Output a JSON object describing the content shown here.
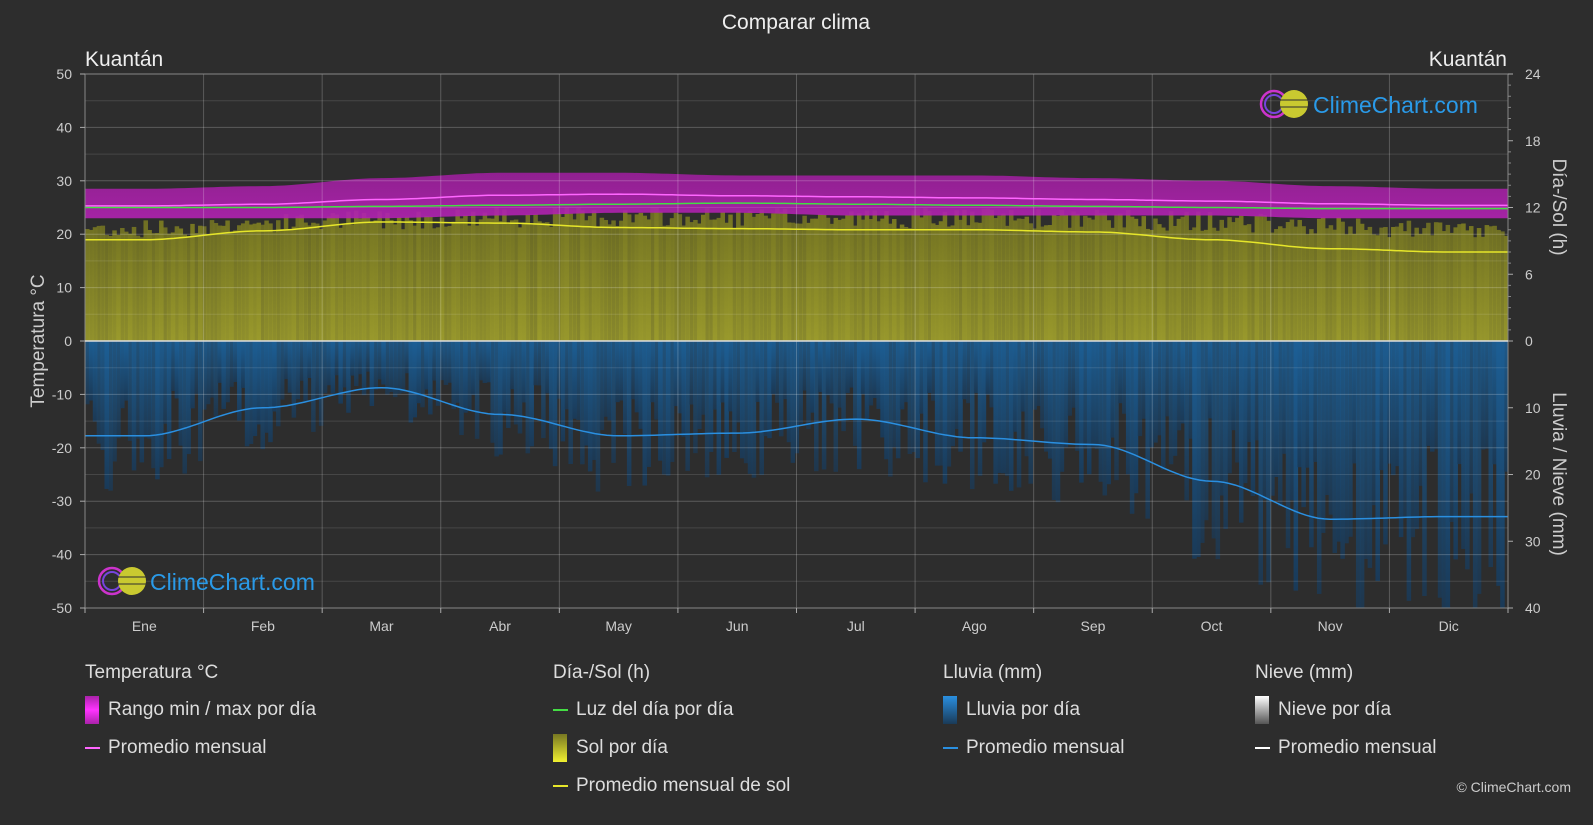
{
  "chart_data": {
    "type": "area",
    "title": "Comparar clima",
    "location_left": "Kuantán",
    "location_right": "Kuantán",
    "months": [
      "Ene",
      "Feb",
      "Mar",
      "Abr",
      "May",
      "Jun",
      "Jul",
      "Ago",
      "Sep",
      "Oct",
      "Nov",
      "Dic"
    ],
    "left_axis": {
      "label": "Temperatura °C",
      "min": -50,
      "max": 50,
      "ticks": [
        50,
        40,
        30,
        20,
        10,
        0,
        -10,
        -20,
        -30,
        -40,
        -50
      ]
    },
    "right_axis_top": {
      "label": "Día-/Sol (h)",
      "min": 0,
      "max": 24,
      "ticks": [
        24,
        18,
        12,
        6,
        0
      ]
    },
    "right_axis_bottom": {
      "label": "Lluvia / Nieve (mm)",
      "min": 0,
      "max": 40,
      "ticks": [
        0,
        10,
        20,
        30,
        40
      ]
    },
    "series": [
      {
        "name": "Rango min / max por día",
        "kind": "band",
        "color": "#d020d0",
        "min": [
          23,
          23,
          23,
          23.5,
          24,
          24,
          23.5,
          23.5,
          23.5,
          23.5,
          23,
          23
        ],
        "max": [
          28.5,
          29,
          30.5,
          31.5,
          31.5,
          31,
          31,
          31,
          30.5,
          30,
          29,
          28.5
        ]
      },
      {
        "name": "Promedio mensual",
        "axis": "temperature",
        "color": "#ff66ff",
        "values": [
          25.3,
          25.6,
          26.5,
          27.3,
          27.5,
          27.2,
          27.0,
          26.8,
          26.5,
          26.2,
          25.7,
          25.4
        ]
      },
      {
        "name": "Luz del día por día",
        "axis": "day_sun",
        "color": "#44dd44",
        "values": [
          12.0,
          12.0,
          12.1,
          12.2,
          12.3,
          12.4,
          12.3,
          12.2,
          12.1,
          12.0,
          11.9,
          11.9
        ]
      },
      {
        "name": "Sol por día",
        "kind": "bars",
        "axis": "day_sun",
        "color": "#c8c832",
        "values": [
          10.5,
          11.0,
          11.4,
          11.6,
          11.6,
          11.5,
          11.5,
          11.5,
          11.4,
          11.2,
          10.7,
          10.3
        ]
      },
      {
        "name": "Promedio mensual de sol",
        "axis": "day_sun",
        "color": "#e6e62a",
        "values": [
          9.1,
          9.9,
          10.7,
          10.6,
          10.2,
          10.1,
          10.0,
          10.0,
          9.8,
          9.1,
          8.3,
          8.0
        ]
      },
      {
        "name": "Lluvia por día",
        "kind": "bars",
        "axis": "rain_snow",
        "color": "#1f77c8",
        "values": [
          14,
          10,
          7,
          11,
          14,
          14,
          12,
          14,
          15,
          21,
          27,
          27
        ]
      },
      {
        "name": "Promedio mensual",
        "axis": "rain_snow",
        "color": "#2a8fe0",
        "values": [
          14.2,
          10.0,
          7.0,
          11.0,
          14.2,
          13.8,
          11.7,
          14.5,
          15.5,
          21.0,
          26.7,
          26.3
        ]
      }
    ],
    "grid": true
  },
  "legend": {
    "temperature": {
      "title": "Temperatura °C",
      "range_label": "Rango min / max por día",
      "avg_label": "Promedio mensual"
    },
    "day_sun": {
      "title": "Día-/Sol (h)",
      "daylight_label": "Luz del día por día",
      "sun_label": "Sol por día",
      "sun_avg_label": "Promedio mensual de sol"
    },
    "rain": {
      "title": "Lluvia (mm)",
      "rain_label": "Lluvia por día",
      "avg_label": "Promedio mensual"
    },
    "snow": {
      "title": "Nieve (mm)",
      "snow_label": "Nieve por día",
      "avg_label": "Promedio mensual"
    }
  },
  "brand": "ClimeChart.com",
  "copyright": "© ClimeChart.com",
  "colors": {
    "background": "#2d2d2d",
    "temp_band": "#d020d0",
    "temp_avg": "#ff66ff",
    "daylight": "#44dd44",
    "sun": "#c8c832",
    "sun_avg": "#e6e62a",
    "rain": "#1f77c8",
    "rain_avg": "#2a8fe0",
    "brand_text": "#2a9ae8"
  }
}
